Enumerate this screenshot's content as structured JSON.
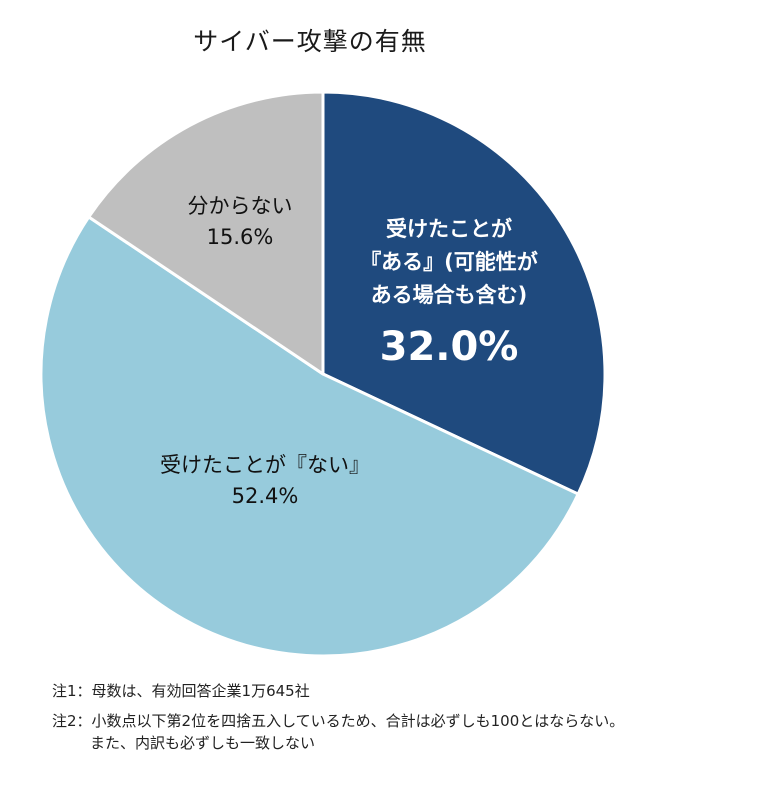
{
  "chart_data": {
    "type": "pie",
    "title": "サイバー攻撃の有無",
    "slices": [
      {
        "label_lines": [
          "受けたことが",
          "『ある』(可能性が",
          "ある場合も含む)"
        ],
        "value": 32.0,
        "value_label": "32.0%",
        "color": "#1f4a7e",
        "text_color": "#ffffff"
      },
      {
        "label_lines": [
          "受けたことが『ない』"
        ],
        "value": 52.4,
        "value_label": "52.4%",
        "color": "#97cbdc",
        "text_color": "#111111"
      },
      {
        "label_lines": [
          "分からない"
        ],
        "value": 15.6,
        "value_label": "15.6%",
        "color": "#bfbfbf",
        "text_color": "#111111"
      }
    ],
    "start": "12 o'clock",
    "direction": "clockwise"
  },
  "notes": {
    "note1": "注1：母数は、有効回答企業1万645社",
    "note2_line1": "注2：小数点以下第2位を四捨五入しているため、合計は必ずしも100とはならない。",
    "note2_line2": "また、内訳も必ずしも一致しない"
  }
}
